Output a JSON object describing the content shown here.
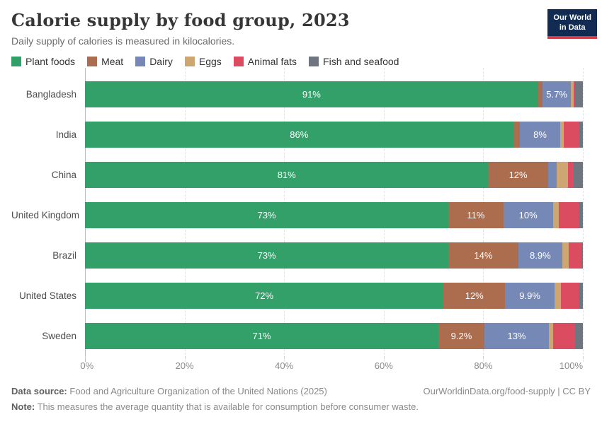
{
  "header": {
    "title": "Calorie supply by food group, 2023",
    "subtitle": "Daily supply of calories is measured in kilocalories."
  },
  "logo": {
    "line1": "Our World",
    "line2": "in Data"
  },
  "chart_data": {
    "type": "bar",
    "stacked": true,
    "orientation": "horizontal",
    "unit": "%",
    "xlim": [
      0,
      100
    ],
    "grid": true,
    "legend_position": "top",
    "x_tick_labels": [
      "0%",
      "20%",
      "40%",
      "60%",
      "80%",
      "100%"
    ],
    "x_tick_values": [
      0,
      20,
      40,
      60,
      80,
      100
    ],
    "series_names": [
      "Plant foods",
      "Meat",
      "Dairy",
      "Eggs",
      "Animal fats",
      "Fish and seafood"
    ],
    "series_colors": [
      "#33A06A",
      "#AC6C4E",
      "#7689B6",
      "#CEA671",
      "#DB4C60",
      "#70767F"
    ],
    "rows": [
      {
        "country": "Bangladesh",
        "values": [
          91,
          0.9,
          5.7,
          0.5,
          0.4,
          1.5
        ],
        "labels": [
          "91%",
          "",
          "5.7%",
          "",
          "",
          ""
        ]
      },
      {
        "country": "India",
        "values": [
          86,
          1.4,
          8,
          0.8,
          3.1,
          0.7
        ],
        "labels": [
          "86%",
          "",
          "8%",
          "",
          "",
          ""
        ]
      },
      {
        "country": "China",
        "values": [
          81,
          12,
          1.7,
          2.3,
          1.2,
          1.8
        ],
        "labels": [
          "81%",
          "12%",
          "",
          "",
          "",
          ""
        ]
      },
      {
        "country": "United Kingdom",
        "values": [
          73,
          11,
          10,
          1.2,
          3.9,
          0.9
        ],
        "labels": [
          "73%",
          "11%",
          "10%",
          "",
          "",
          ""
        ]
      },
      {
        "country": "Brazil",
        "values": [
          73,
          14,
          8.9,
          1.2,
          2.6,
          0.3
        ],
        "labels": [
          "73%",
          "14%",
          "8.9%",
          "",
          "",
          ""
        ]
      },
      {
        "country": "United States",
        "values": [
          72,
          12.4,
          9.9,
          1.3,
          3.6,
          0.8
        ],
        "labels": [
          "72%",
          "12%",
          "9.9%",
          "",
          "",
          ""
        ]
      },
      {
        "country": "Sweden",
        "values": [
          71,
          9.2,
          13,
          0.8,
          4.4,
          1.6
        ],
        "labels": [
          "71%",
          "9.2%",
          "13%",
          "",
          "",
          ""
        ]
      }
    ]
  },
  "footer": {
    "source_label": "Data source:",
    "source_text": "Food and Agriculture Organization of the United Nations (2025)",
    "link_text": "OurWorldinData.org/food-supply | CC BY",
    "note_label": "Note:",
    "note_text": "This measures the average quantity that is available for consumption before consumer waste."
  }
}
